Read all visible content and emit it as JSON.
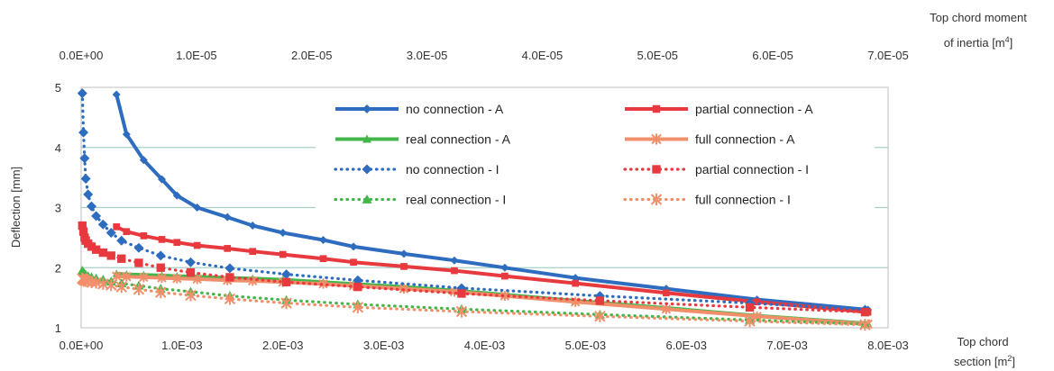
{
  "chart_data": {
    "type": "line",
    "title": "",
    "ylabel": "Deflection [mm]",
    "ylim": [
      1,
      5
    ],
    "yticks": [
      "1",
      "2",
      "3",
      "4",
      "5"
    ],
    "x_bottom": {
      "label_line1": "Top chord",
      "label_line2": "section [m",
      "label_sup": "2",
      "label_end": "]",
      "lim": [
        0,
        0.008
      ],
      "ticks": [
        "0.0E+00",
        "1.0E-03",
        "2.0E-03",
        "3.0E-03",
        "4.0E-03",
        "5.0E-03",
        "6.0E-03",
        "7.0E-03",
        "8.0E-03"
      ]
    },
    "x_top": {
      "label_line1": "Top chord moment",
      "label_line2": "of inertia [m",
      "label_sup": "4",
      "label_end": "]",
      "lim": [
        0,
        7e-05
      ],
      "ticks": [
        "0.0E+00",
        "1.0E-05",
        "2.0E-05",
        "3.0E-05",
        "4.0E-05",
        "5.0E-05",
        "6.0E-05",
        "7.0E-05"
      ]
    },
    "grid": true,
    "legend_position": "top-right",
    "series": [
      {
        "name": "no connection - A",
        "axis": "bottom",
        "color": "#2e6cbf",
        "style": "solid",
        "marker": "diamond",
        "x": [
          0.00035,
          0.00045,
          0.00062,
          0.0008,
          0.00095,
          0.00115,
          0.00145,
          0.0017,
          0.002,
          0.0024,
          0.0027,
          0.0032,
          0.0037,
          0.0042,
          0.0049,
          0.0058,
          0.0067,
          0.0078
        ],
        "y": [
          4.88,
          4.22,
          3.79,
          3.47,
          3.2,
          3.0,
          2.84,
          2.7,
          2.58,
          2.46,
          2.35,
          2.23,
          2.12,
          2.0,
          1.83,
          1.65,
          1.47,
          1.3
        ]
      },
      {
        "name": "partial connection - A",
        "axis": "bottom",
        "color": "#e8393e",
        "style": "solid",
        "marker": "square",
        "x": [
          0.00035,
          0.00045,
          0.00062,
          0.0008,
          0.00095,
          0.00115,
          0.00145,
          0.0017,
          0.002,
          0.0024,
          0.0027,
          0.0032,
          0.0037,
          0.0042,
          0.0049,
          0.0058,
          0.0067,
          0.0078
        ],
        "y": [
          2.68,
          2.6,
          2.53,
          2.47,
          2.42,
          2.37,
          2.32,
          2.27,
          2.22,
          2.15,
          2.09,
          2.02,
          1.95,
          1.86,
          1.74,
          1.58,
          1.43,
          1.26
        ]
      },
      {
        "name": "real connection - A",
        "axis": "bottom",
        "color": "#43b649",
        "style": "solid",
        "marker": "triangle",
        "x": [
          0.00035,
          0.00045,
          0.00062,
          0.0008,
          0.00095,
          0.00115,
          0.00145,
          0.0017,
          0.002,
          0.0024,
          0.0027,
          0.0032,
          0.0037,
          0.0042,
          0.0049,
          0.0058,
          0.0067,
          0.0078
        ],
        "y": [
          1.9,
          1.89,
          1.88,
          1.87,
          1.86,
          1.85,
          1.83,
          1.82,
          1.8,
          1.76,
          1.73,
          1.68,
          1.62,
          1.55,
          1.45,
          1.33,
          1.2,
          1.07
        ]
      },
      {
        "name": "full connection - A",
        "axis": "bottom",
        "color": "#f28f6b",
        "style": "solid",
        "marker": "star",
        "x": [
          0.00035,
          0.00045,
          0.00062,
          0.0008,
          0.00095,
          0.00115,
          0.00145,
          0.0017,
          0.002,
          0.0024,
          0.0027,
          0.0032,
          0.0037,
          0.0042,
          0.0049,
          0.0058,
          0.0067,
          0.0078
        ],
        "y": [
          1.86,
          1.85,
          1.84,
          1.83,
          1.82,
          1.81,
          1.79,
          1.78,
          1.76,
          1.73,
          1.7,
          1.65,
          1.6,
          1.53,
          1.43,
          1.31,
          1.19,
          1.06
        ]
      },
      {
        "name": "no connection - I",
        "axis": "top",
        "color": "#2e6cbf",
        "style": "dotted",
        "marker": "diamond",
        "x": [
          1e-07,
          2e-07,
          3e-07,
          4e-07,
          6e-07,
          9e-07,
          1.3e-06,
          1.9e-06,
          2.6e-06,
          3.5e-06,
          5e-06,
          6.9e-06,
          9.5e-06,
          1.29e-05,
          1.78e-05,
          2.4e-05,
          3.3e-05,
          4.5e-05,
          5.8e-05,
          6.8e-05
        ],
        "y": [
          4.9,
          4.25,
          3.82,
          3.48,
          3.22,
          3.02,
          2.86,
          2.72,
          2.58,
          2.45,
          2.33,
          2.2,
          2.09,
          1.99,
          1.89,
          1.79,
          1.66,
          1.53,
          1.41,
          1.3
        ]
      },
      {
        "name": "partial connection - I",
        "axis": "top",
        "color": "#e8393e",
        "style": "dotted",
        "marker": "square",
        "x": [
          1e-07,
          2e-07,
          3e-07,
          4e-07,
          6e-07,
          9e-07,
          1.3e-06,
          1.9e-06,
          2.6e-06,
          3.5e-06,
          5e-06,
          6.9e-06,
          9.5e-06,
          1.29e-05,
          1.78e-05,
          2.4e-05,
          3.3e-05,
          4.5e-05,
          5.8e-05,
          6.8e-05
        ],
        "y": [
          2.7,
          2.6,
          2.5,
          2.45,
          2.4,
          2.35,
          2.3,
          2.25,
          2.2,
          2.15,
          2.08,
          2.0,
          1.92,
          1.84,
          1.76,
          1.68,
          1.57,
          1.45,
          1.34,
          1.26
        ]
      },
      {
        "name": "real connection - I",
        "axis": "top",
        "color": "#43b649",
        "style": "dotted",
        "marker": "triangle",
        "x": [
          1e-07,
          2e-07,
          3e-07,
          4e-07,
          6e-07,
          9e-07,
          1.3e-06,
          1.9e-06,
          2.6e-06,
          3.5e-06,
          5e-06,
          6.9e-06,
          9.5e-06,
          1.29e-05,
          1.78e-05,
          2.4e-05,
          3.3e-05,
          4.5e-05,
          5.8e-05,
          6.8e-05
        ],
        "y": [
          1.95,
          1.92,
          1.9,
          1.88,
          1.86,
          1.84,
          1.82,
          1.8,
          1.77,
          1.74,
          1.7,
          1.65,
          1.6,
          1.53,
          1.46,
          1.39,
          1.31,
          1.22,
          1.13,
          1.06
        ]
      },
      {
        "name": "full connection - I",
        "axis": "top",
        "color": "#f28f6b",
        "style": "dotted",
        "marker": "star",
        "x": [
          1e-07,
          2e-07,
          3e-07,
          4e-07,
          6e-07,
          9e-07,
          1.3e-06,
          1.9e-06,
          2.6e-06,
          3.5e-06,
          5e-06,
          6.9e-06,
          9.5e-06,
          1.29e-05,
          1.78e-05,
          2.4e-05,
          3.3e-05,
          4.5e-05,
          5.8e-05,
          6.8e-05
        ],
        "y": [
          1.82,
          1.8,
          1.79,
          1.78,
          1.77,
          1.76,
          1.75,
          1.73,
          1.71,
          1.68,
          1.64,
          1.59,
          1.54,
          1.48,
          1.41,
          1.34,
          1.27,
          1.19,
          1.11,
          1.05
        ]
      }
    ]
  }
}
